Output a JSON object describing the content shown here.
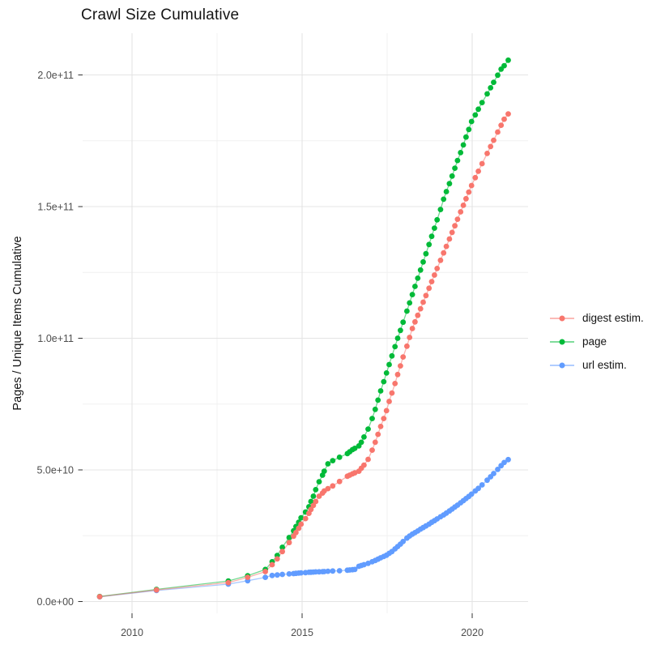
{
  "title": "Crawl Size Cumulative",
  "y_axis": {
    "label": "Pages / Unique Items Cumulative",
    "tick_labels": [
      "0.0e+00",
      "5.0e+10",
      "1.0e+11",
      "1.5e+11",
      "2.0e+11"
    ],
    "tick_values_billions": [
      0,
      50,
      100,
      150,
      200
    ],
    "minor_values_billions": [
      25,
      75,
      125,
      175
    ]
  },
  "x_axis": {
    "tick_labels": [
      "2010",
      "2015",
      "2020"
    ],
    "tick_values": [
      2010,
      2015,
      2020
    ],
    "minor_values": [
      2012.5,
      2017.5
    ]
  },
  "colors": {
    "digest": "#F8766D",
    "page": "#00BA38",
    "url": "#619CFF",
    "grid_major": "#E4E4E4",
    "grid_minor": "#F0F0F0",
    "tick": "#333333",
    "axis_text": "#4D4D4D"
  },
  "legend": [
    {
      "label": "digest estim.",
      "color": "#F8766D"
    },
    {
      "label": "page",
      "color": "#00BA38"
    },
    {
      "label": "url estim.",
      "color": "#619CFF"
    }
  ],
  "chart_data": {
    "type": "line",
    "title": "Crawl Size Cumulative",
    "xlabel": "",
    "ylabel": "Pages / Unique Items Cumulative",
    "x_unit": "year",
    "y_unit": "items (value × 1e9)",
    "xlim": [
      2008.6,
      2021.6
    ],
    "ylim_billions": [
      -5,
      215
    ],
    "grid": true,
    "legend_position": "right",
    "series": [
      {
        "name": "url estim.",
        "color": "#619CFF",
        "points": [
          [
            2009.05,
            1.8
          ],
          [
            2010.72,
            4.2
          ],
          [
            2012.83,
            6.6
          ],
          [
            2013.4,
            7.9
          ],
          [
            2013.92,
            9.2
          ],
          [
            2014.12,
            9.9
          ],
          [
            2014.27,
            10.1
          ],
          [
            2014.42,
            10.3
          ],
          [
            2014.62,
            10.5
          ],
          [
            2014.75,
            10.6
          ],
          [
            2014.82,
            10.7
          ],
          [
            2014.9,
            10.8
          ],
          [
            2014.97,
            10.9
          ],
          [
            2015.1,
            11.0
          ],
          [
            2015.2,
            11.1
          ],
          [
            2015.26,
            11.15
          ],
          [
            2015.33,
            11.2
          ],
          [
            2015.4,
            11.25
          ],
          [
            2015.5,
            11.3
          ],
          [
            2015.6,
            11.35
          ],
          [
            2015.65,
            11.4
          ],
          [
            2015.76,
            11.5
          ],
          [
            2015.9,
            11.6
          ],
          [
            2016.1,
            11.7
          ],
          [
            2016.33,
            11.9
          ],
          [
            2016.4,
            12.0
          ],
          [
            2016.48,
            12.1
          ],
          [
            2016.55,
            12.2
          ],
          [
            2016.67,
            13.4
          ],
          [
            2016.74,
            13.7
          ],
          [
            2016.82,
            14.0
          ],
          [
            2016.94,
            14.5
          ],
          [
            2017.06,
            15.1
          ],
          [
            2017.15,
            15.6
          ],
          [
            2017.23,
            16.1
          ],
          [
            2017.31,
            16.6
          ],
          [
            2017.4,
            17.1
          ],
          [
            2017.48,
            17.6
          ],
          [
            2017.56,
            18.3
          ],
          [
            2017.64,
            19.0
          ],
          [
            2017.73,
            20.0
          ],
          [
            2017.81,
            20.9
          ],
          [
            2017.89,
            21.8
          ],
          [
            2017.97,
            22.8
          ],
          [
            2018.08,
            24.1
          ],
          [
            2018.16,
            24.9
          ],
          [
            2018.24,
            25.6
          ],
          [
            2018.32,
            26.2
          ],
          [
            2018.4,
            26.8
          ],
          [
            2018.48,
            27.5
          ],
          [
            2018.56,
            28.1
          ],
          [
            2018.64,
            28.7
          ],
          [
            2018.73,
            29.4
          ],
          [
            2018.81,
            30.1
          ],
          [
            2018.89,
            30.7
          ],
          [
            2018.97,
            31.4
          ],
          [
            2019.07,
            32.2
          ],
          [
            2019.16,
            32.9
          ],
          [
            2019.24,
            33.6
          ],
          [
            2019.33,
            34.4
          ],
          [
            2019.41,
            35.1
          ],
          [
            2019.49,
            35.9
          ],
          [
            2019.57,
            36.6
          ],
          [
            2019.66,
            37.5
          ],
          [
            2019.74,
            38.3
          ],
          [
            2019.82,
            39.1
          ],
          [
            2019.9,
            39.9
          ],
          [
            2019.98,
            40.8
          ],
          [
            2020.09,
            42.0
          ],
          [
            2020.18,
            43.0
          ],
          [
            2020.29,
            44.3
          ],
          [
            2020.44,
            46.1
          ],
          [
            2020.54,
            47.4
          ],
          [
            2020.63,
            48.6
          ],
          [
            2020.75,
            50.2
          ],
          [
            2020.85,
            51.6
          ],
          [
            2020.94,
            52.8
          ],
          [
            2021.06,
            53.9
          ]
        ]
      },
      {
        "name": "page",
        "color": "#00BA38",
        "points": [
          [
            2009.05,
            1.9
          ],
          [
            2010.72,
            4.6
          ],
          [
            2012.83,
            7.8
          ],
          [
            2013.4,
            9.8
          ],
          [
            2013.92,
            12.2
          ],
          [
            2014.12,
            15.1
          ],
          [
            2014.27,
            17.5
          ],
          [
            2014.42,
            20.6
          ],
          [
            2014.62,
            24.3
          ],
          [
            2014.75,
            26.9
          ],
          [
            2014.82,
            28.5
          ],
          [
            2014.9,
            30.1
          ],
          [
            2014.97,
            31.8
          ],
          [
            2015.1,
            34.0
          ],
          [
            2015.2,
            36.0
          ],
          [
            2015.26,
            38.0
          ],
          [
            2015.33,
            40.0
          ],
          [
            2015.4,
            42.5
          ],
          [
            2015.5,
            45.5
          ],
          [
            2015.6,
            48.0
          ],
          [
            2015.65,
            49.5
          ],
          [
            2015.76,
            52.3
          ],
          [
            2015.9,
            53.5
          ],
          [
            2016.1,
            54.8
          ],
          [
            2016.33,
            56.2
          ],
          [
            2016.4,
            56.9
          ],
          [
            2016.48,
            57.7
          ],
          [
            2016.55,
            58.2
          ],
          [
            2016.67,
            59.1
          ],
          [
            2016.74,
            60.5
          ],
          [
            2016.82,
            62.5
          ],
          [
            2016.94,
            65.5
          ],
          [
            2017.06,
            69.5
          ],
          [
            2017.15,
            73.0
          ],
          [
            2017.23,
            76.5
          ],
          [
            2017.31,
            80.0
          ],
          [
            2017.4,
            83.5
          ],
          [
            2017.48,
            86.8
          ],
          [
            2017.56,
            90.0
          ],
          [
            2017.64,
            93.3
          ],
          [
            2017.73,
            96.8
          ],
          [
            2017.81,
            100.0
          ],
          [
            2017.89,
            103.0
          ],
          [
            2017.97,
            106.1
          ],
          [
            2018.08,
            110.3
          ],
          [
            2018.16,
            113.4
          ],
          [
            2018.24,
            116.6
          ],
          [
            2018.32,
            119.7
          ],
          [
            2018.4,
            122.8
          ],
          [
            2018.48,
            125.9
          ],
          [
            2018.56,
            129.0
          ],
          [
            2018.64,
            132.1
          ],
          [
            2018.73,
            135.6
          ],
          [
            2018.81,
            138.7
          ],
          [
            2018.89,
            141.8
          ],
          [
            2018.97,
            145.0
          ],
          [
            2019.07,
            148.9
          ],
          [
            2019.16,
            152.8
          ],
          [
            2019.24,
            155.7
          ],
          [
            2019.33,
            158.7
          ],
          [
            2019.41,
            161.6
          ],
          [
            2019.49,
            164.6
          ],
          [
            2019.57,
            167.5
          ],
          [
            2019.66,
            170.5
          ],
          [
            2019.74,
            173.4
          ],
          [
            2019.82,
            176.4
          ],
          [
            2019.9,
            179.3
          ],
          [
            2019.98,
            182.3
          ],
          [
            2020.09,
            184.8
          ],
          [
            2020.18,
            187.0
          ],
          [
            2020.29,
            189.5
          ],
          [
            2020.44,
            192.8
          ],
          [
            2020.54,
            195.1
          ],
          [
            2020.63,
            197.2
          ],
          [
            2020.75,
            199.9
          ],
          [
            2020.85,
            202.2
          ],
          [
            2020.94,
            203.5
          ],
          [
            2021.06,
            205.6
          ]
        ]
      },
      {
        "name": "digest estim.",
        "color": "#F8766D",
        "points": [
          [
            2009.05,
            1.85
          ],
          [
            2010.72,
            4.4
          ],
          [
            2012.83,
            7.2
          ],
          [
            2013.4,
            9.2
          ],
          [
            2013.92,
            11.4
          ],
          [
            2014.12,
            14.0
          ],
          [
            2014.27,
            16.2
          ],
          [
            2014.42,
            19.0
          ],
          [
            2014.62,
            22.4
          ],
          [
            2014.75,
            24.8
          ],
          [
            2014.82,
            26.2
          ],
          [
            2014.9,
            27.8
          ],
          [
            2014.97,
            29.4
          ],
          [
            2015.1,
            31.5
          ],
          [
            2015.2,
            33.5
          ],
          [
            2015.26,
            35.0
          ],
          [
            2015.33,
            36.5
          ],
          [
            2015.4,
            38.0
          ],
          [
            2015.5,
            40.0
          ],
          [
            2015.6,
            41.2
          ],
          [
            2015.65,
            42.0
          ],
          [
            2015.76,
            42.9
          ],
          [
            2015.9,
            43.9
          ],
          [
            2016.1,
            45.6
          ],
          [
            2016.33,
            47.6
          ],
          [
            2016.4,
            48.0
          ],
          [
            2016.48,
            48.5
          ],
          [
            2016.55,
            48.9
          ],
          [
            2016.67,
            49.5
          ],
          [
            2016.74,
            50.6
          ],
          [
            2016.82,
            51.8
          ],
          [
            2016.94,
            54.0
          ],
          [
            2017.06,
            57.5
          ],
          [
            2017.15,
            60.5
          ],
          [
            2017.23,
            63.5
          ],
          [
            2017.31,
            66.5
          ],
          [
            2017.4,
            69.5
          ],
          [
            2017.48,
            72.5
          ],
          [
            2017.56,
            76.0
          ],
          [
            2017.64,
            79.2
          ],
          [
            2017.73,
            82.8
          ],
          [
            2017.81,
            86.2
          ],
          [
            2017.89,
            89.5
          ],
          [
            2017.97,
            92.9
          ],
          [
            2018.08,
            97.0
          ],
          [
            2018.16,
            100.3
          ],
          [
            2018.24,
            103.7
          ],
          [
            2018.32,
            106.2
          ],
          [
            2018.4,
            108.7
          ],
          [
            2018.48,
            111.2
          ],
          [
            2018.56,
            113.7
          ],
          [
            2018.64,
            116.2
          ],
          [
            2018.73,
            119.0
          ],
          [
            2018.81,
            121.5
          ],
          [
            2018.89,
            124.0
          ],
          [
            2018.97,
            126.5
          ],
          [
            2019.07,
            129.6
          ],
          [
            2019.16,
            132.4
          ],
          [
            2019.24,
            134.9
          ],
          [
            2019.33,
            137.7
          ],
          [
            2019.41,
            140.2
          ],
          [
            2019.49,
            142.7
          ],
          [
            2019.57,
            145.2
          ],
          [
            2019.66,
            148.0
          ],
          [
            2019.74,
            150.5
          ],
          [
            2019.82,
            153.0
          ],
          [
            2019.9,
            155.5
          ],
          [
            2019.98,
            158.0
          ],
          [
            2020.09,
            161.0
          ],
          [
            2020.18,
            163.4
          ],
          [
            2020.29,
            166.3
          ],
          [
            2020.44,
            170.2
          ],
          [
            2020.54,
            172.8
          ],
          [
            2020.63,
            175.2
          ],
          [
            2020.75,
            178.3
          ],
          [
            2020.85,
            180.9
          ],
          [
            2020.94,
            183.2
          ],
          [
            2021.06,
            185.2
          ]
        ]
      }
    ]
  }
}
